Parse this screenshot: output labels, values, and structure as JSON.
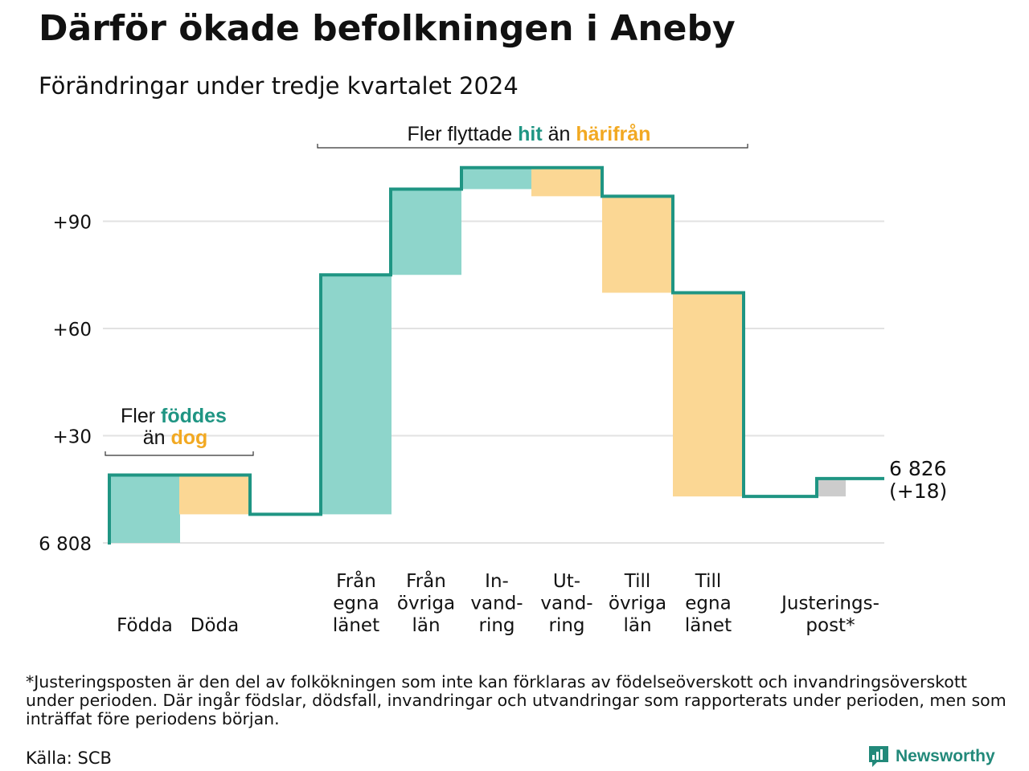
{
  "title": "Därför ökade befolkningen i Aneby",
  "subtitle": "Förändringar under tredje kvartalet 2024",
  "colors": {
    "increase": "#8ed5cb",
    "decrease": "#fbd794",
    "adjustment": "#cccccc",
    "line": "#1f9583",
    "hit": "#1f9583",
    "dog": "#f2a922"
  },
  "chart_data": {
    "type": "waterfall",
    "base_label": "6 808",
    "y_ticks": [
      {
        "value": 0,
        "label": "6 808"
      },
      {
        "value": 30,
        "label": "+30"
      },
      {
        "value": 60,
        "label": "+60"
      },
      {
        "value": 90,
        "label": "+90"
      }
    ],
    "ylim": [
      0,
      105
    ],
    "steps": [
      {
        "label": "Födda",
        "value": 19,
        "kind": "increase"
      },
      {
        "label": "Döda",
        "value": -11,
        "kind": "decrease"
      },
      {
        "label": "Från egna länet",
        "value": 67,
        "kind": "increase"
      },
      {
        "label": "Från övriga län",
        "value": 24,
        "kind": "increase"
      },
      {
        "label": "In-vandring",
        "value": 6,
        "kind": "increase"
      },
      {
        "label": "Ut-vandring",
        "value": -8,
        "kind": "decrease"
      },
      {
        "label": "Till övriga län",
        "value": -27,
        "kind": "decrease"
      },
      {
        "label": "Till egna länet",
        "value": -57,
        "kind": "decrease"
      },
      {
        "label": "Justerings-post*",
        "value": 5,
        "kind": "adjustment"
      }
    ],
    "x_labels": [
      [
        "Födda"
      ],
      [
        "Döda"
      ],
      [
        "Från",
        "egna",
        "länet"
      ],
      [
        "Från",
        "övriga",
        "län"
      ],
      [
        "In-",
        "vand-",
        "ring"
      ],
      [
        "Ut-",
        "vand-",
        "ring"
      ],
      [
        "Till",
        "övriga",
        "län"
      ],
      [
        "Till",
        "egna",
        "länet"
      ],
      [
        "Justerings-",
        "post*"
      ]
    ],
    "end_value": "6 826",
    "end_change": "(+18)",
    "annotation_births": {
      "line1_pre": "Fler ",
      "line1_hl": "föddes",
      "line2_pre": "än ",
      "line2_hl": "dog"
    },
    "annotation_moves": {
      "pre": "Fler flyttade ",
      "hl1": "hit",
      "mid": " än ",
      "hl2": "härifrån"
    }
  },
  "footnote": "*Justeringsposten är den del av folkökningen som inte kan förklaras av födelseöverskott och invandringsöverskott under perioden. Där ingår födslar, dödsfall, invandringar och utvandringar som rapporterats under perioden, men som inträffat före periodens början.",
  "source": "Källa: SCB",
  "brand": "Newsworthy"
}
